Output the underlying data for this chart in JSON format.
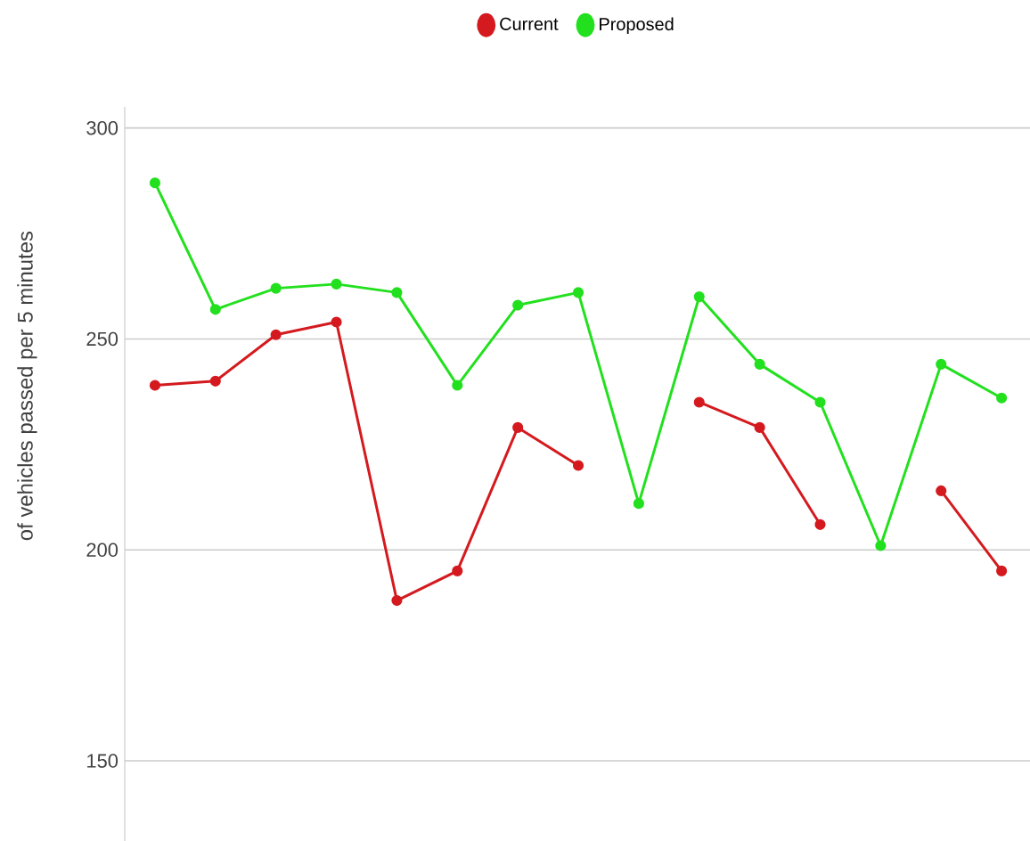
{
  "chart_data": {
    "type": "line",
    "ylabel": "of vehicles passed per 5 minutes",
    "categories": [
      null,
      null,
      null,
      null,
      null,
      null,
      null,
      null,
      null,
      null,
      null,
      null,
      null,
      null,
      null
    ],
    "series": [
      {
        "name": "Current",
        "color": "#d41a1f",
        "values": [
          239,
          240,
          251,
          254,
          188,
          195,
          229,
          220,
          null,
          235,
          229,
          206,
          null,
          214,
          195
        ]
      },
      {
        "name": "Proposed",
        "color": "#22e01e",
        "values": [
          287,
          257,
          262,
          263,
          261,
          239,
          258,
          261,
          211,
          260,
          244,
          235,
          201,
          244,
          236
        ]
      }
    ],
    "ylim": [
      131,
      305
    ],
    "yticks": [
      150,
      200,
      250,
      300
    ],
    "grid": "y",
    "legend": "top",
    "marker": "circle",
    "line_style": "solid"
  }
}
